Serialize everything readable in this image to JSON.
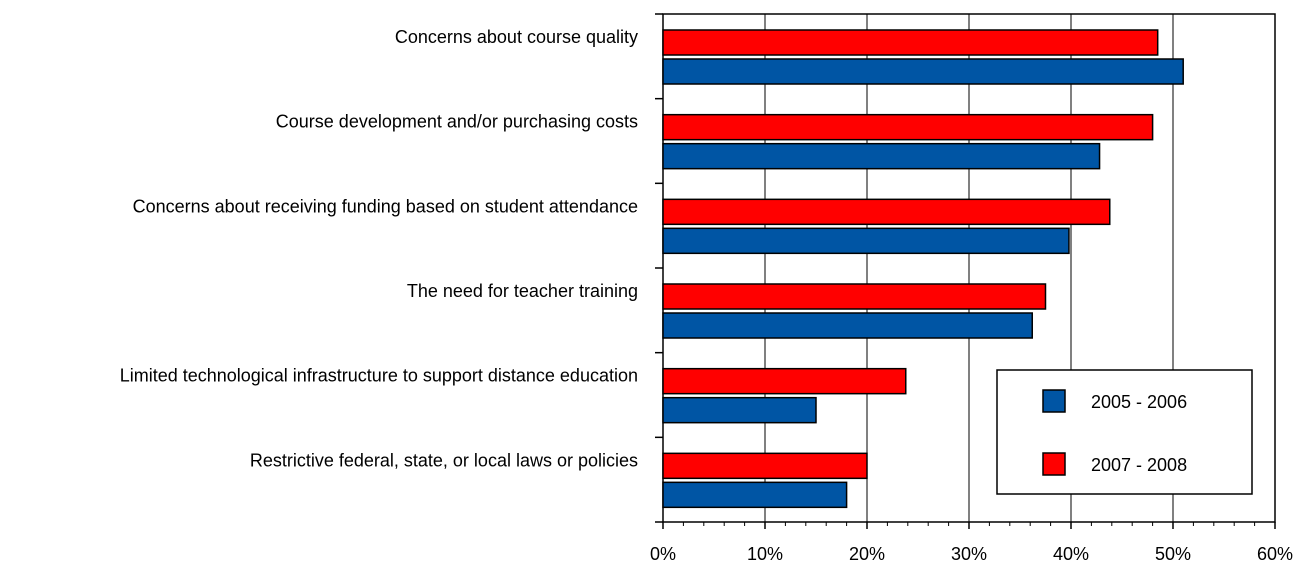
{
  "chart_data": {
    "type": "bar",
    "orientation": "horizontal",
    "categories": [
      "Concerns about course quality",
      "Course development and/or purchasing costs",
      "Concerns about receiving funding based on student attendance",
      "The need for teacher training",
      "Limited technological infrastructure to support distance education",
      "Restrictive federal, state, or local laws or policies"
    ],
    "series": [
      {
        "name": "2007 - 2008",
        "color": "#ff0000",
        "values": [
          48.5,
          48,
          43.8,
          37.5,
          23.8,
          20
        ]
      },
      {
        "name": "2005 - 2006",
        "color": "#0055a4",
        "values": [
          51,
          42.8,
          39.8,
          36.2,
          15,
          18
        ]
      }
    ],
    "legend_order": [
      "2005 - 2006",
      "2007 - 2008"
    ],
    "xlim": [
      0,
      60
    ],
    "x_ticks": [
      0,
      10,
      20,
      30,
      40,
      50,
      60
    ],
    "x_tick_labels": [
      "0%",
      "10%",
      "20%",
      "30%",
      "40%",
      "50%",
      "60%"
    ],
    "grid": "vertical",
    "legend_position": "bottom-right",
    "title": "",
    "xlabel": "",
    "ylabel": ""
  }
}
